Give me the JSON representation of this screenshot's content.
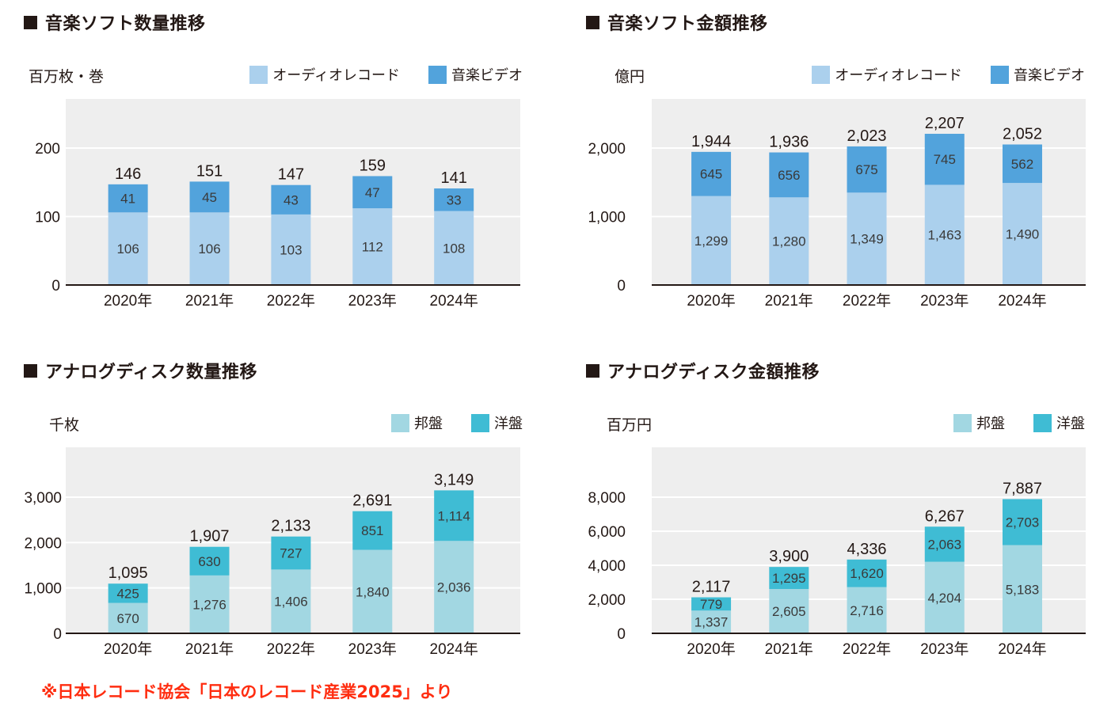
{
  "source_note": "※日本レコード協会「日本のレコード産業2025」より",
  "chart_data": [
    {
      "type": "bar",
      "stacked": true,
      "title": "音楽ソフト数量推移",
      "unit_label": "百万枚・巻",
      "xlabel": "",
      "ylabel": "百万枚・巻",
      "categories": [
        "2020年",
        "2021年",
        "2022年",
        "2023年",
        "2024年"
      ],
      "series": [
        {
          "name": "オーディオレコード",
          "color": "#abd0ed",
          "values": [
            106,
            106,
            103,
            112,
            108
          ],
          "labels": [
            "106",
            "106",
            "103",
            "112",
            "108"
          ]
        },
        {
          "name": "音楽ビデオ",
          "color": "#52a3dc",
          "values": [
            41,
            45,
            43,
            47,
            33
          ],
          "labels": [
            "41",
            "45",
            "43",
            "47",
            "33"
          ]
        }
      ],
      "totals": [
        146,
        151,
        147,
        159,
        141
      ],
      "total_labels": [
        "146",
        "151",
        "147",
        "159",
        "141"
      ],
      "ylim": [
        0,
        200
      ],
      "yticks": [
        0,
        100,
        200
      ],
      "ytick_labels": [
        "0",
        "100",
        "200"
      ],
      "grid": true,
      "legend_position": "top-right"
    },
    {
      "type": "bar",
      "stacked": true,
      "title": "音楽ソフト金額推移",
      "unit_label": "億円",
      "xlabel": "",
      "ylabel": "億円",
      "categories": [
        "2020年",
        "2021年",
        "2022年",
        "2023年",
        "2024年"
      ],
      "series": [
        {
          "name": "オーディオレコード",
          "color": "#abd0ed",
          "values": [
            1299,
            1280,
            1349,
            1463,
            1490
          ],
          "labels": [
            "1,299",
            "1,280",
            "1,349",
            "1,463",
            "1,490"
          ]
        },
        {
          "name": "音楽ビデオ",
          "color": "#52a3dc",
          "values": [
            645,
            656,
            675,
            745,
            562
          ],
          "labels": [
            "645",
            "656",
            "675",
            "745",
            "562"
          ]
        }
      ],
      "totals": [
        1944,
        1936,
        2023,
        2207,
        2052
      ],
      "total_labels": [
        "1,944",
        "1,936",
        "2,023",
        "2,207",
        "2,052"
      ],
      "ylim": [
        0,
        2000
      ],
      "yticks": [
        0,
        1000,
        2000
      ],
      "ytick_labels": [
        "0",
        "1,000",
        "2,000"
      ],
      "grid": true,
      "legend_position": "top-right"
    },
    {
      "type": "bar",
      "stacked": true,
      "title": "アナログディスク数量推移",
      "unit_label": "千枚",
      "xlabel": "",
      "ylabel": "千枚",
      "categories": [
        "2020年",
        "2021年",
        "2022年",
        "2023年",
        "2024年"
      ],
      "series": [
        {
          "name": "邦盤",
          "color": "#a2d7e2",
          "values": [
            670,
            1276,
            1406,
            1840,
            2036
          ],
          "labels": [
            "670",
            "1,276",
            "1,406",
            "1,840",
            "2,036"
          ]
        },
        {
          "name": "洋盤",
          "color": "#3fbcd4",
          "values": [
            425,
            630,
            727,
            851,
            1114
          ],
          "labels": [
            "425",
            "630",
            "727",
            "851",
            "1,114"
          ]
        }
      ],
      "totals": [
        1095,
        1907,
        2133,
        2691,
        3149
      ],
      "total_labels": [
        "1,095",
        "1,907",
        "2,133",
        "2,691",
        "3,149"
      ],
      "ylim": [
        0,
        3000
      ],
      "yticks": [
        0,
        1000,
        2000,
        3000
      ],
      "ytick_labels": [
        "0",
        "1,000",
        "2,000",
        "3,000"
      ],
      "grid": true,
      "legend_position": "top-right"
    },
    {
      "type": "bar",
      "stacked": true,
      "title": "アナログディスク金額推移",
      "unit_label": "百万円",
      "xlabel": "",
      "ylabel": "百万円",
      "categories": [
        "2020年",
        "2021年",
        "2022年",
        "2023年",
        "2024年"
      ],
      "series": [
        {
          "name": "邦盤",
          "color": "#a2d7e2",
          "values": [
            1337,
            2605,
            2716,
            4204,
            5183
          ],
          "labels": [
            "1,337",
            "2,605",
            "2,716",
            "4,204",
            "5,183"
          ]
        },
        {
          "name": "洋盤",
          "color": "#3fbcd4",
          "values": [
            779,
            1295,
            1620,
            2063,
            2703
          ],
          "labels": [
            "779",
            "1,295",
            "1,620",
            "2,063",
            "2,703"
          ]
        }
      ],
      "totals": [
        2117,
        3900,
        4336,
        6267,
        7887
      ],
      "total_labels": [
        "2,117",
        "3,900",
        "4,336",
        "6,267",
        "7,887"
      ],
      "ylim": [
        0,
        8000
      ],
      "yticks": [
        0,
        2000,
        4000,
        6000,
        8000
      ],
      "ytick_labels": [
        "0",
        "2,000",
        "4,000",
        "6,000",
        "8,000"
      ],
      "grid": true,
      "legend_position": "top-right"
    }
  ]
}
